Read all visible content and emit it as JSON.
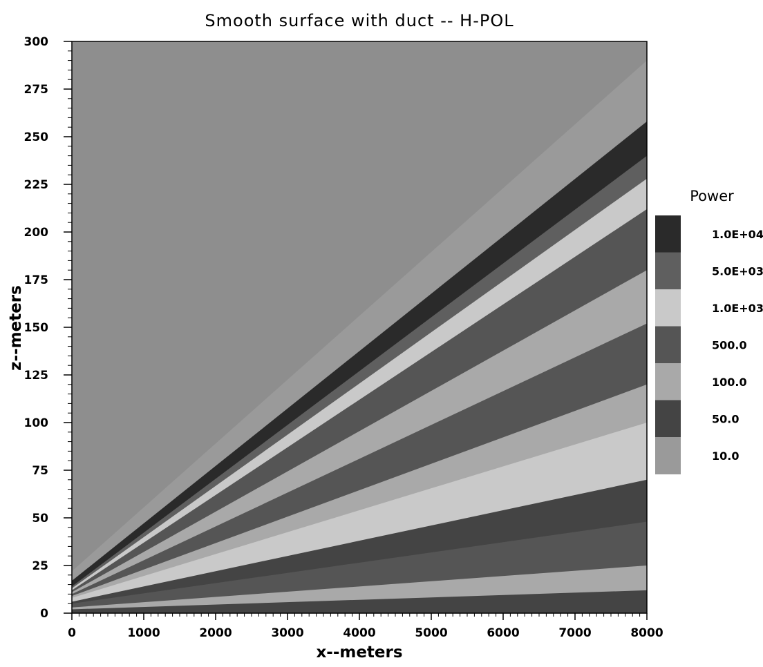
{
  "chart_data": {
    "type": "heatmap",
    "title": "Smooth surface with duct -- H-POL",
    "xlabel": "x--meters",
    "ylabel": "z--meters",
    "xlim": [
      0,
      8000
    ],
    "ylim": [
      0,
      300
    ],
    "x_ticks": [
      0,
      1000,
      2000,
      3000,
      4000,
      5000,
      6000,
      7000,
      8000
    ],
    "y_ticks": [
      0,
      25,
      50,
      75,
      100,
      125,
      150,
      175,
      200,
      225,
      250,
      275,
      300
    ],
    "legend": {
      "title": "Power",
      "placement": "right",
      "levels": [
        {
          "label": "1.0E+04",
          "value": 10000,
          "shade": "#2a2a2a"
        },
        {
          "label": "5.0E+03",
          "value": 5000,
          "shade": "#5f5f5f"
        },
        {
          "label": "1.0E+03",
          "value": 1000,
          "shade": "#c9c9c9"
        },
        {
          "label": "500.0",
          "value": 500,
          "shade": "#555555"
        },
        {
          "label": "100.0",
          "value": 100,
          "shade": "#a9a9a9"
        },
        {
          "label": "50.0",
          "value": 50,
          "shade": "#444444"
        },
        {
          "label": "10.0",
          "value": 10,
          "shade": "#9a9a9a"
        }
      ]
    },
    "background_shade": "#8e8e8e",
    "bands": [
      {
        "level": "10.0",
        "x": [
          0,
          8000
        ],
        "z_start": [
          15,
          15
        ],
        "z_end": [
          22,
          290
        ]
      },
      {
        "level": "1.0E+04",
        "x": [
          0,
          8000
        ],
        "z_start": [
          13,
          13
        ],
        "z_end": [
          17,
          258
        ]
      },
      {
        "level": "5.0E+03",
        "x": [
          0,
          8000
        ],
        "z_start": [
          12,
          12
        ],
        "z_end": [
          14,
          240
        ]
      },
      {
        "level": "1.0E+03",
        "x": [
          0,
          8000
        ],
        "z_start": [
          11,
          11
        ],
        "z_end": [
          13,
          228
        ]
      },
      {
        "level": "500.0",
        "x": [
          0,
          8000
        ],
        "z_start": [
          10,
          10
        ],
        "z_end": [
          12,
          212
        ]
      },
      {
        "level": "100.0",
        "x": [
          0,
          8000
        ],
        "z_start": [
          9,
          9
        ],
        "z_end": [
          11,
          180
        ]
      },
      {
        "level": "500.0",
        "x": [
          0,
          8000
        ],
        "z_start": [
          8,
          8
        ],
        "z_end": [
          10,
          152
        ]
      },
      {
        "level": "100.0",
        "x": [
          0,
          8000
        ],
        "z_start": [
          7,
          7
        ],
        "z_end": [
          9,
          120
        ]
      },
      {
        "level": "1.0E+03",
        "x": [
          0,
          8000
        ],
        "z_start": [
          5,
          5
        ],
        "z_end": [
          8,
          100
        ]
      },
      {
        "level": "50.0",
        "x": [
          0,
          8000
        ],
        "z_start": [
          4,
          4
        ],
        "z_end": [
          6,
          70
        ]
      },
      {
        "level": "500.0",
        "x": [
          0,
          8000
        ],
        "z_start": [
          2,
          2
        ],
        "z_end": [
          5,
          48
        ]
      },
      {
        "level": "100.0",
        "x": [
          0,
          8000
        ],
        "z_start": [
          1,
          1
        ],
        "z_end": [
          3,
          25
        ]
      },
      {
        "level": "50.0",
        "x": [
          0,
          8000
        ],
        "z_start": [
          0,
          0
        ],
        "z_end": [
          2,
          12
        ]
      }
    ]
  }
}
